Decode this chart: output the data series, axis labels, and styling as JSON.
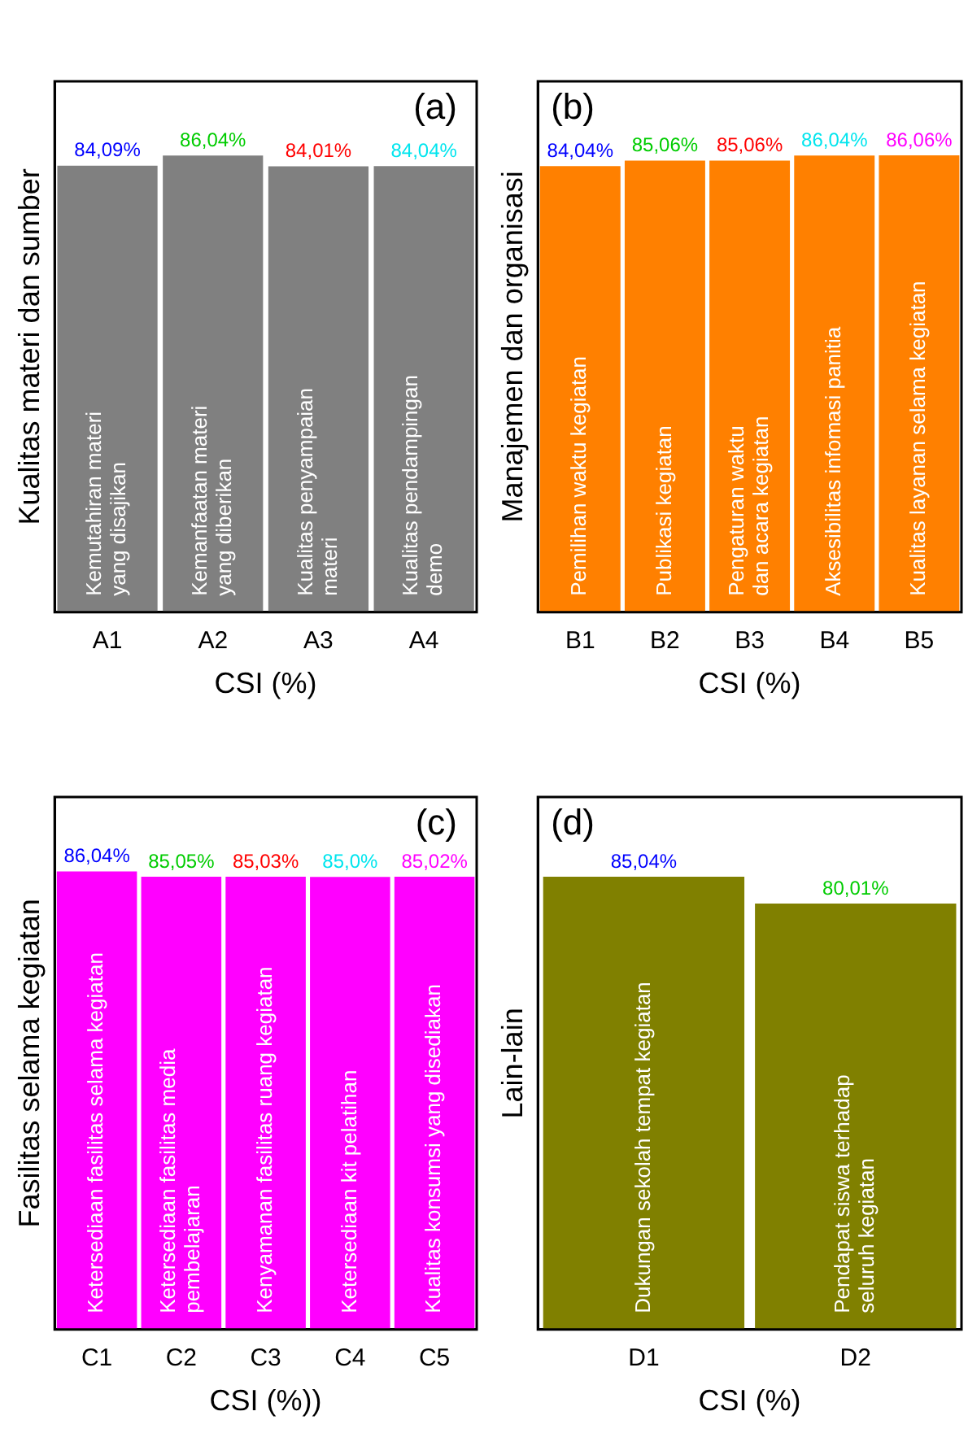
{
  "chart_data": [
    {
      "type": "bar",
      "title": "(a)",
      "xlabel": "CSI (%)",
      "ylabel": "Kualitas materi dan sumber",
      "categories": [
        "A1",
        "A2",
        "A3",
        "A4"
      ],
      "values": [
        84.09,
        86.04,
        84.01,
        84.04
      ],
      "value_labels": [
        "84,09%",
        "86,04%",
        "84,01%",
        "84,04%"
      ],
      "color": "#808080",
      "tick_labels": "x",
      "grid": false,
      "legend": false,
      "annotations": [
        "Kemutahiran materi\nyang disajikan",
        "Kemanfaatan materi\nyang diberikan",
        "Kualitas penyampaian\nmateri",
        "Kualitas pendampingan\ndemo"
      ]
    },
    {
      "type": "bar",
      "title": "(b)",
      "xlabel": "CSI (%)",
      "ylabel": "Manajemen dan organisasi",
      "categories": [
        "B1",
        "B2",
        "B3",
        "B4",
        "B5"
      ],
      "values": [
        84.04,
        85.06,
        85.06,
        86.04,
        86.06
      ],
      "value_labels": [
        "84,04%",
        "85,06%",
        "85,06%",
        "86,04%",
        "86,06%"
      ],
      "color": "#ff8000",
      "tick_labels": "x",
      "grid": false,
      "legend": false,
      "annotations": [
        "Pemilihan waktu kegiatan",
        "Publikasi kegiatan",
        "Pengaturan waktu\ndan acara kegiatan",
        "Aksesibilitas infomasi panitia",
        "Kualitas layanan selama kegiatan"
      ]
    },
    {
      "type": "bar",
      "title": "(c)",
      "xlabel": "CSI (%))",
      "ylabel": "Fasilitas selama kegiatan",
      "categories": [
        "C1",
        "C2",
        "C3",
        "C4",
        "C5"
      ],
      "values": [
        86.04,
        85.05,
        85.03,
        85.0,
        85.02
      ],
      "value_labels": [
        "86,04%",
        "85,05%",
        "85,03%",
        "85,0%",
        "85,02%"
      ],
      "color": "#ff00ff",
      "tick_labels": "x",
      "grid": false,
      "legend": false,
      "annotations": [
        "Ketersediaan fasilitas selama kegiatan",
        "Ketersediaan fasilitas media\npembelajaran",
        "Kenyamanan fasilitas ruang kegiatan",
        "Ketersediaan kit pelatihan",
        "Kualitas konsumsi yang disediakan"
      ]
    },
    {
      "type": "bar",
      "title": "(d)",
      "xlabel": "CSI (%)",
      "ylabel": "Lain-lain",
      "categories": [
        "D1",
        "D2"
      ],
      "values": [
        85.04,
        80.01
      ],
      "value_labels": [
        "85,04%",
        "80,01%"
      ],
      "color": "#808000",
      "tick_labels": "x",
      "grid": false,
      "legend": false,
      "annotations": [
        "Dukungan sekolah tempat kegiatan",
        "Pendapat siswa terhadap\nseluruh kegiatan"
      ]
    }
  ]
}
